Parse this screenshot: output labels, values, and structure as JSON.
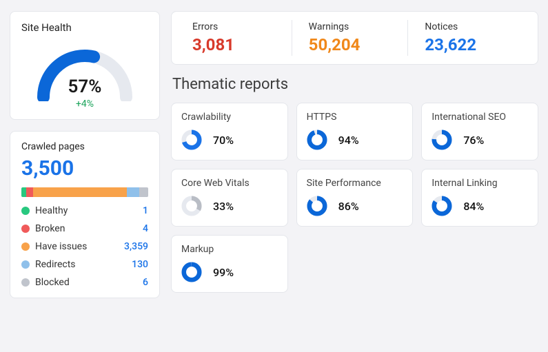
{
  "colors": {
    "blue": "#1a73e8",
    "blue_deep": "#0b67d8",
    "green": "#28c87f",
    "red": "#f05a5a",
    "orange": "#f8a24a",
    "lightblue": "#8fc0ea",
    "gray": "#c0c4cc",
    "track": "#e6e9ef"
  },
  "site_health": {
    "title": "Site Health",
    "percent": 57,
    "percent_label": "57%",
    "delta_label": "+4%",
    "gauge_color": "#0b67d8",
    "gauge_track": "#e6e9ef"
  },
  "crawled": {
    "title": "Crawled pages",
    "total_label": "3,500",
    "total": 3500,
    "items": [
      {
        "label": "Healthy",
        "value_label": "1",
        "value": 1,
        "color": "#28c87f"
      },
      {
        "label": "Broken",
        "value_label": "4",
        "value": 4,
        "color": "#f05a5a"
      },
      {
        "label": "Have issues",
        "value_label": "3,359",
        "value": 3359,
        "color": "#f8a24a"
      },
      {
        "label": "Redirects",
        "value_label": "130",
        "value": 130,
        "color": "#8fc0ea"
      },
      {
        "label": "Blocked",
        "value_label": "6",
        "value": 6,
        "color": "#c0c4cc"
      }
    ],
    "bar_visual_widths_pct": [
      4,
      5,
      74,
      10,
      7
    ]
  },
  "counts": {
    "errors": {
      "label": "Errors",
      "value_label": "3,081",
      "color": "#d83a2b"
    },
    "warnings": {
      "label": "Warnings",
      "value_label": "50,204",
      "color": "#f0881a"
    },
    "notices": {
      "label": "Notices",
      "value_label": "23,622",
      "color": "#1a73e8"
    }
  },
  "thematic": {
    "title": "Thematic reports",
    "ring_track": "#e6e9ef",
    "reports": [
      {
        "title": "Crawlability",
        "percent": 70,
        "percent_label": "70%",
        "color": "#1a73e8"
      },
      {
        "title": "HTTPS",
        "percent": 94,
        "percent_label": "94%",
        "color": "#0b67d8"
      },
      {
        "title": "International SEO",
        "percent": 76,
        "percent_label": "76%",
        "color": "#0b67d8"
      },
      {
        "title": "Core Web Vitals",
        "percent": 33,
        "percent_label": "33%",
        "color": "#b9bdc5"
      },
      {
        "title": "Site Performance",
        "percent": 86,
        "percent_label": "86%",
        "color": "#0b67d8"
      },
      {
        "title": "Internal Linking",
        "percent": 84,
        "percent_label": "84%",
        "color": "#0b67d8"
      },
      {
        "title": "Markup",
        "percent": 99,
        "percent_label": "99%",
        "color": "#0b67d8"
      }
    ]
  }
}
